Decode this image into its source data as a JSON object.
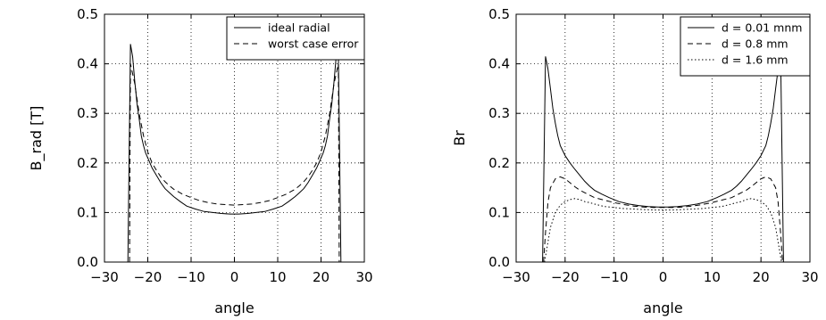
{
  "chart_data": [
    {
      "type": "line",
      "title": "",
      "xlabel": "angle",
      "ylabel": "B_rad [T]",
      "xlim": [
        -30,
        30
      ],
      "ylim": [
        0.0,
        0.5
      ],
      "xticks": [
        -30,
        -20,
        -10,
        0,
        10,
        20,
        30
      ],
      "xtick_labels": [
        "−30",
        "−20",
        "−10",
        "0",
        "10",
        "20",
        "30"
      ],
      "yticks": [
        0.0,
        0.1,
        0.2,
        0.3,
        0.4,
        0.5
      ],
      "ytick_labels": [
        "0.0",
        "0.1",
        "0.2",
        "0.3",
        "0.4",
        "0.5"
      ],
      "grid": true,
      "legend_position": "top-right",
      "series": [
        {
          "name": "ideal radial",
          "style": "solid",
          "x": [
            -24.6,
            -24.0,
            -23.5,
            -23.0,
            -22.5,
            -22.0,
            -21.5,
            -21.0,
            -20.5,
            -20.0,
            -19.5,
            -19.0,
            -18.0,
            -17.0,
            -16.0,
            -15.0,
            -14.0,
            -12.5,
            -11.0,
            -9.0,
            -7.0,
            -5.0,
            -3.0,
            -1.0,
            0.0,
            1.0,
            3.0,
            5.0,
            7.0,
            9.0,
            11.0,
            12.5,
            14.0,
            15.0,
            16.0,
            17.0,
            18.0,
            19.0,
            19.5,
            20.0,
            20.5,
            21.0,
            21.5,
            22.0,
            22.5,
            23.0,
            23.5,
            24.0,
            24.6
          ],
          "y": [
            0.0,
            0.44,
            0.415,
            0.365,
            0.32,
            0.29,
            0.255,
            0.235,
            0.22,
            0.21,
            0.2,
            0.19,
            0.175,
            0.16,
            0.148,
            0.14,
            0.132,
            0.122,
            0.113,
            0.107,
            0.102,
            0.1,
            0.098,
            0.097,
            0.097,
            0.097,
            0.098,
            0.1,
            0.102,
            0.107,
            0.113,
            0.122,
            0.132,
            0.14,
            0.148,
            0.16,
            0.175,
            0.19,
            0.2,
            0.21,
            0.22,
            0.235,
            0.255,
            0.29,
            0.32,
            0.365,
            0.415,
            0.425,
            0.0
          ]
        },
        {
          "name": "worst case error",
          "style": "dashed",
          "x": [
            -24.2,
            -24.0,
            -23.0,
            -22.0,
            -21.0,
            -20.0,
            -19.0,
            -18.0,
            -17.0,
            -16.0,
            -15.0,
            -14.0,
            -12.0,
            -10.0,
            -8.0,
            -6.0,
            -4.0,
            -2.0,
            0.0,
            2.0,
            4.0,
            6.0,
            8.0,
            10.0,
            12.0,
            14.0,
            15.0,
            16.0,
            17.0,
            18.0,
            19.0,
            20.0,
            21.0,
            22.0,
            23.0,
            24.0,
            24.2
          ],
          "y": [
            0.0,
            0.4,
            0.36,
            0.3,
            0.255,
            0.222,
            0.2,
            0.185,
            0.172,
            0.162,
            0.154,
            0.147,
            0.137,
            0.13,
            0.124,
            0.12,
            0.117,
            0.116,
            0.115,
            0.116,
            0.117,
            0.12,
            0.124,
            0.13,
            0.137,
            0.147,
            0.154,
            0.162,
            0.172,
            0.185,
            0.2,
            0.222,
            0.255,
            0.3,
            0.36,
            0.4,
            0.0
          ]
        }
      ]
    },
    {
      "type": "line",
      "title": "",
      "xlabel": "angle",
      "ylabel": "Br",
      "xlim": [
        -30,
        30
      ],
      "ylim": [
        0.0,
        0.5
      ],
      "xticks": [
        -30,
        -20,
        -10,
        0,
        10,
        20,
        30
      ],
      "xtick_labels": [
        "−30",
        "−20",
        "−10",
        "0",
        "10",
        "20",
        "30"
      ],
      "yticks": [
        0.0,
        0.1,
        0.2,
        0.3,
        0.4,
        0.5
      ],
      "ytick_labels": [
        "0.0",
        "0.1",
        "0.2",
        "0.3",
        "0.4",
        "0.5"
      ],
      "grid": true,
      "legend_position": "top-right",
      "series": [
        {
          "name": "d = 0.01 mnm",
          "style": "solid",
          "x": [
            -24.6,
            -24.0,
            -23.5,
            -23.0,
            -22.5,
            -22.0,
            -21.5,
            -21.0,
            -20.5,
            -20.0,
            -19.0,
            -18.0,
            -17.0,
            -16.0,
            -15.0,
            -14.0,
            -12.5,
            -11.0,
            -9.0,
            -7.0,
            -5.0,
            -3.0,
            -1.0,
            0.0,
            1.0,
            3.0,
            5.0,
            7.0,
            9.0,
            11.0,
            12.5,
            14.0,
            15.0,
            16.0,
            17.0,
            18.0,
            19.0,
            20.0,
            20.5,
            21.0,
            21.5,
            22.0,
            22.5,
            23.0,
            23.5,
            24.0,
            24.6
          ],
          "y": [
            0.0,
            0.415,
            0.39,
            0.35,
            0.31,
            0.28,
            0.255,
            0.235,
            0.225,
            0.215,
            0.2,
            0.187,
            0.175,
            0.163,
            0.153,
            0.145,
            0.137,
            0.13,
            0.122,
            0.117,
            0.114,
            0.112,
            0.111,
            0.111,
            0.111,
            0.112,
            0.114,
            0.117,
            0.122,
            0.13,
            0.137,
            0.145,
            0.153,
            0.163,
            0.175,
            0.187,
            0.2,
            0.215,
            0.225,
            0.235,
            0.255,
            0.28,
            0.31,
            0.35,
            0.39,
            0.43,
            0.0
          ]
        },
        {
          "name": "d = 0.8 mm",
          "style": "dashed",
          "x": [
            -24.4,
            -24.0,
            -23.5,
            -23.0,
            -22.0,
            -21.0,
            -20.0,
            -19.0,
            -18.0,
            -17.0,
            -16.0,
            -15.0,
            -14.0,
            -12.0,
            -10.0,
            -8.0,
            -6.0,
            -4.0,
            -2.0,
            0.0,
            2.0,
            4.0,
            6.0,
            8.0,
            10.0,
            12.0,
            14.0,
            15.0,
            16.0,
            17.0,
            18.0,
            19.0,
            20.0,
            21.0,
            22.0,
            23.0,
            23.5,
            24.0,
            24.4
          ],
          "y": [
            0.0,
            0.06,
            0.12,
            0.15,
            0.168,
            0.172,
            0.168,
            0.16,
            0.152,
            0.145,
            0.14,
            0.135,
            0.13,
            0.125,
            0.12,
            0.116,
            0.113,
            0.111,
            0.11,
            0.11,
            0.11,
            0.111,
            0.113,
            0.116,
            0.12,
            0.125,
            0.13,
            0.135,
            0.14,
            0.145,
            0.152,
            0.16,
            0.168,
            0.172,
            0.168,
            0.15,
            0.12,
            0.06,
            0.0
          ]
        },
        {
          "name": "d = 1.6 mm",
          "style": "dotted",
          "x": [
            -24.2,
            -23.5,
            -23.0,
            -22.0,
            -21.0,
            -20.0,
            -19.0,
            -18.0,
            -17.0,
            -16.0,
            -15.0,
            -14.0,
            -12.0,
            -10.0,
            -8.0,
            -6.0,
            -4.0,
            -2.0,
            0.0,
            2.0,
            4.0,
            6.0,
            8.0,
            10.0,
            12.0,
            14.0,
            15.0,
            16.0,
            17.0,
            18.0,
            19.0,
            20.0,
            21.0,
            22.0,
            23.0,
            23.5,
            24.2
          ],
          "y": [
            0.0,
            0.04,
            0.07,
            0.1,
            0.115,
            0.122,
            0.126,
            0.128,
            0.126,
            0.122,
            0.12,
            0.117,
            0.112,
            0.11,
            0.108,
            0.107,
            0.106,
            0.105,
            0.105,
            0.105,
            0.106,
            0.107,
            0.108,
            0.11,
            0.112,
            0.117,
            0.12,
            0.122,
            0.126,
            0.128,
            0.126,
            0.122,
            0.115,
            0.1,
            0.07,
            0.04,
            0.0
          ]
        }
      ]
    }
  ]
}
